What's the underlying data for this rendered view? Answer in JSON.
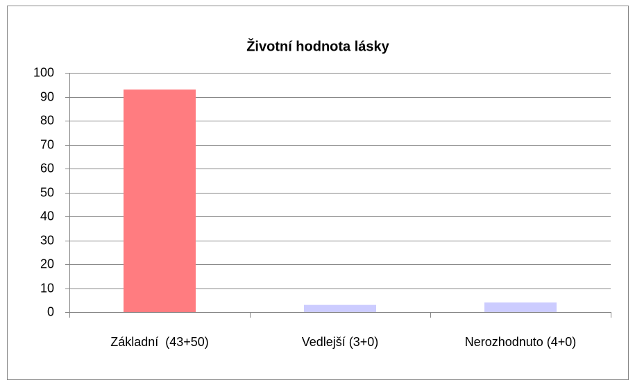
{
  "chart_data": {
    "type": "bar",
    "title": "Životní hodnota lásky",
    "categories": [
      "Základní  (43+50)",
      "Vedlejší (3+0)",
      "Nerozhodnuto (4+0)"
    ],
    "values": [
      93,
      3,
      4
    ],
    "colors": [
      "#ff7c80",
      "#ccccff",
      "#ccccff"
    ],
    "ylim": [
      0,
      100
    ],
    "yticks": [
      0,
      10,
      20,
      30,
      40,
      50,
      60,
      70,
      80,
      90,
      100
    ],
    "grid": true
  }
}
